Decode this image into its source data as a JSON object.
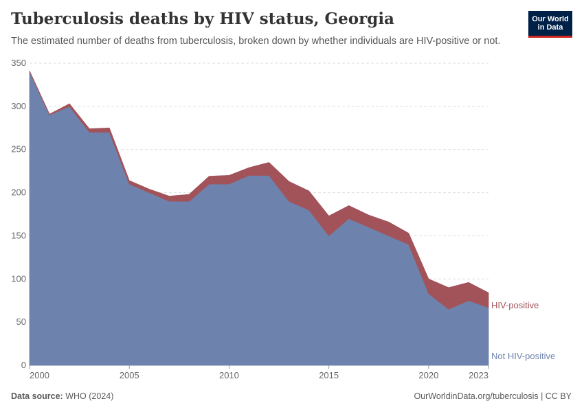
{
  "header": {
    "title": "Tuberculosis deaths by HIV status, Georgia",
    "subtitle": "The estimated number of deaths from tuberculosis, broken down by whether individuals are HIV-positive or not."
  },
  "logo": {
    "line1": "Our World",
    "line2": "in Data",
    "bg_color": "#002147",
    "accent_color": "#ce261e"
  },
  "footer": {
    "source_label": "Data source:",
    "source_value": "WHO (2024)",
    "right_text": "OurWorldinData.org/tuberculosis | CC BY"
  },
  "chart_data": {
    "type": "area",
    "stacked": true,
    "x": [
      2000,
      2001,
      2002,
      2003,
      2004,
      2005,
      2006,
      2007,
      2008,
      2009,
      2010,
      2011,
      2012,
      2013,
      2014,
      2015,
      2016,
      2017,
      2018,
      2019,
      2020,
      2021,
      2022,
      2023
    ],
    "series": [
      {
        "name": "Not HIV-positive",
        "color": "#6d83ad",
        "values": [
          340,
          290,
          300,
          270,
          270,
          210,
          200,
          190,
          190,
          210,
          210,
          220,
          220,
          190,
          180,
          150,
          170,
          160,
          150,
          140,
          83,
          65,
          75,
          67
        ]
      },
      {
        "name": "HIV-positive",
        "color": "#a2535a",
        "values": [
          1,
          1,
          3,
          4,
          5,
          4,
          4,
          6,
          8,
          9,
          10,
          9,
          15,
          23,
          22,
          23,
          15,
          14,
          16,
          13,
          17,
          25,
          21,
          17
        ]
      }
    ],
    "ylim": [
      0,
      350
    ],
    "yticks": [
      0,
      50,
      100,
      150,
      200,
      250,
      300,
      350
    ],
    "xticks": [
      2000,
      2005,
      2010,
      2015,
      2020,
      2023
    ],
    "grid": true,
    "legend": "right-inline"
  }
}
